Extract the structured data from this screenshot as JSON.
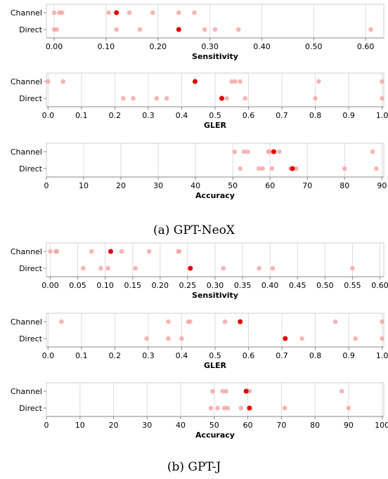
{
  "captions": [
    "(a) GPT-NeoX",
    "(b) GPT-J"
  ],
  "colors": {
    "faded": "#f4a3a3",
    "highlight": "#e00000",
    "grid": "#dddddd"
  },
  "chart_data": [
    {
      "type": "scatter",
      "group": "(a) GPT-NeoX",
      "xlabel": "Sensitivity",
      "categories": [
        "Channel",
        "Direct"
      ],
      "xlim": [
        -0.015,
        0.635
      ],
      "ticks": [
        0.0,
        0.1,
        0.2,
        0.3,
        0.4,
        0.5,
        0.6
      ],
      "tick_labels": [
        "0.00",
        "0.10",
        "0.20",
        "0.30",
        "0.40",
        "0.50",
        "0.60"
      ],
      "series": [
        {
          "category": "Channel",
          "values": [
            0.0,
            0.01,
            0.015,
            0.105,
            0.145,
            0.19,
            0.24,
            0.27
          ],
          "highlight": 0.12
        },
        {
          "category": "Direct",
          "values": [
            0.0,
            0.005,
            0.12,
            0.165,
            0.29,
            0.31,
            0.355,
            0.61
          ],
          "highlight": 0.24
        }
      ]
    },
    {
      "type": "scatter",
      "group": "(a) GPT-NeoX",
      "xlabel": "GLER",
      "categories": [
        "Channel",
        "Direct"
      ],
      "xlim": [
        -0.005,
        1.005
      ],
      "ticks": [
        0.0,
        0.1,
        0.2,
        0.3,
        0.4,
        0.5,
        0.6,
        0.7,
        0.8,
        0.9,
        1.0
      ],
      "tick_labels": [
        "0.0",
        "0.1",
        "0.2",
        "0.3",
        "0.4",
        "0.5",
        "0.6",
        "0.7",
        "0.8",
        "0.9",
        "1.0"
      ],
      "series": [
        {
          "category": "Channel",
          "values": [
            0.0,
            0.045,
            0.55,
            0.56,
            0.575,
            0.81,
            1.0
          ],
          "highlight": 0.44
        },
        {
          "category": "Direct",
          "values": [
            0.225,
            0.255,
            0.325,
            0.355,
            0.535,
            0.59,
            0.8,
            1.0
          ],
          "highlight": 0.52
        }
      ]
    },
    {
      "type": "scatter",
      "group": "(a) GPT-NeoX",
      "xlabel": "Accuracy",
      "categories": [
        "Channel",
        "Direct"
      ],
      "xlim": [
        0,
        90.5
      ],
      "ticks": [
        0,
        10,
        20,
        30,
        40,
        50,
        60,
        70,
        80,
        90
      ],
      "tick_labels": [
        "0",
        "10",
        "20",
        "30",
        "40",
        "50",
        "60",
        "70",
        "80",
        "90"
      ],
      "series": [
        {
          "category": "Channel",
          "values": [
            50.5,
            53.0,
            54.0,
            59.5,
            60.0,
            62.5,
            87.5
          ],
          "highlight": 61.0
        },
        {
          "category": "Direct",
          "values": [
            52.0,
            57.0,
            58.0,
            60.5,
            65.5,
            67.0,
            80.0,
            88.5
          ],
          "highlight": 66.0
        }
      ]
    },
    {
      "type": "scatter",
      "group": "(b) GPT-J",
      "xlabel": "Sensitivity",
      "categories": [
        "Channel",
        "Direct"
      ],
      "xlim": [
        -0.007,
        0.607
      ],
      "ticks": [
        0.0,
        0.05,
        0.1,
        0.15,
        0.2,
        0.25,
        0.3,
        0.35,
        0.4,
        0.45,
        0.5,
        0.55,
        0.6
      ],
      "tick_labels": [
        "0.00",
        "0.05",
        "0.10",
        "0.15",
        "0.20",
        "0.25",
        "0.30",
        "0.35",
        "0.40",
        "0.45",
        "0.50",
        "0.55",
        "0.60"
      ],
      "series": [
        {
          "category": "Channel",
          "values": [
            0.0,
            0.01,
            0.012,
            0.075,
            0.13,
            0.18,
            0.233,
            0.235
          ],
          "highlight": 0.11
        },
        {
          "category": "Direct",
          "values": [
            0.06,
            0.092,
            0.105,
            0.155,
            0.315,
            0.38,
            0.405,
            0.55
          ],
          "highlight": 0.255
        }
      ]
    },
    {
      "type": "scatter",
      "group": "(b) GPT-J",
      "xlabel": "GLER",
      "categories": [
        "Channel",
        "Direct"
      ],
      "xlim": [
        -0.005,
        1.005
      ],
      "ticks": [
        0.0,
        0.1,
        0.2,
        0.3,
        0.4,
        0.5,
        0.6,
        0.7,
        0.8,
        0.9,
        1.0
      ],
      "tick_labels": [
        "0.0",
        "0.1",
        "0.2",
        "0.3",
        "0.4",
        "0.5",
        "0.6",
        "0.7",
        "0.8",
        "0.9",
        "1.0"
      ],
      "series": [
        {
          "category": "Channel",
          "values": [
            0.04,
            0.36,
            0.42,
            0.425,
            0.53,
            0.86,
            1.0
          ],
          "highlight": 0.575
        },
        {
          "category": "Direct",
          "values": [
            0.295,
            0.36,
            0.4,
            0.76,
            0.92,
            1.0
          ],
          "highlight": 0.71
        }
      ]
    },
    {
      "type": "scatter",
      "group": "(b) GPT-J",
      "xlabel": "Accuracy",
      "categories": [
        "Channel",
        "Direct"
      ],
      "xlim": [
        0,
        100.5
      ],
      "ticks": [
        0,
        10,
        20,
        30,
        40,
        50,
        60,
        70,
        80,
        90,
        100
      ],
      "tick_labels": [
        "0",
        "10",
        "20",
        "30",
        "40",
        "50",
        "60",
        "70",
        "80",
        "90",
        "100"
      ],
      "series": [
        {
          "category": "Channel",
          "values": [
            49.5,
            52.5,
            53.5,
            60.5,
            88.0
          ],
          "highlight": 59.5
        },
        {
          "category": "Direct",
          "values": [
            49.0,
            51.0,
            53.0,
            54.0,
            58.0,
            71.0,
            90.0
          ],
          "highlight": 60.5
        }
      ]
    }
  ]
}
